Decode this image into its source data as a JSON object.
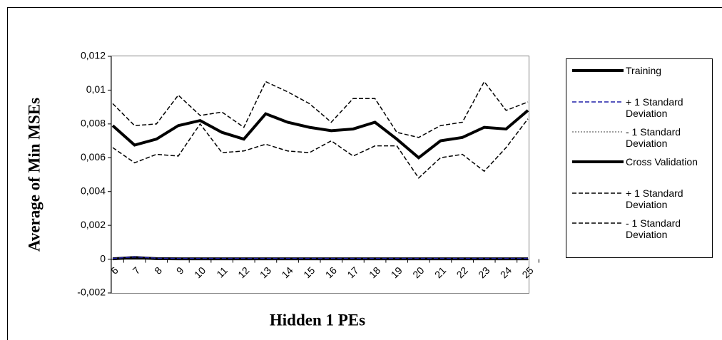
{
  "chart_data": {
    "type": "line",
    "xlabel": "Hidden 1 PEs",
    "ylabel": "Average of Min MSEs",
    "categories": [
      "6",
      "7",
      "8",
      "9",
      "10",
      "11",
      "12",
      "13",
      "14",
      "15",
      "16",
      "17",
      "18",
      "19",
      "20",
      "21",
      "22",
      "23",
      "24",
      "25"
    ],
    "ylim": [
      -0.002,
      0.012
    ],
    "yticks": [
      {
        "value": -0.002,
        "label": "-0,002"
      },
      0,
      {
        "value": 0.002,
        "label": "0,002"
      },
      {
        "value": 0.004,
        "label": "0,004"
      },
      {
        "value": 0.006,
        "label": "0,006"
      },
      {
        "value": 0.008,
        "label": "0,008"
      },
      {
        "value": 0.01,
        "label": "0,01"
      },
      {
        "value": 0.012,
        "label": "0,012"
      }
    ],
    "series": [
      {
        "name": "Training",
        "color": "#000000",
        "width": 4,
        "style": "solid",
        "values": [
          2e-05,
          0.0001,
          3e-05,
          2e-05,
          2e-05,
          2e-05,
          2e-05,
          2e-05,
          2e-05,
          2e-05,
          2e-05,
          2e-05,
          2e-05,
          2e-05,
          2e-05,
          2e-05,
          2e-05,
          2e-05,
          2e-05,
          2e-05
        ]
      },
      {
        "name": "+ 1 Standard Deviation",
        "color": "#1f1fa8",
        "width": 1.5,
        "style": "dashed",
        "values": [
          4e-05,
          0.00013,
          5e-05,
          4e-05,
          4e-05,
          4e-05,
          4e-05,
          4e-05,
          4e-05,
          4e-05,
          4e-05,
          4e-05,
          4e-05,
          4e-05,
          4e-05,
          4e-05,
          4e-05,
          4e-05,
          4e-05,
          4e-05
        ]
      },
      {
        "name": "- 1 Standard Deviation",
        "color": "#000000",
        "width": 0.8,
        "style": "dotted",
        "values": [
          0,
          7e-05,
          1e-05,
          0,
          0,
          0,
          0,
          0,
          0,
          0,
          0,
          0,
          0,
          0,
          0,
          0,
          0,
          0,
          0,
          0
        ]
      },
      {
        "name": "Cross Validation",
        "color": "#000000",
        "width": 4,
        "style": "solid",
        "values": [
          0.0079,
          0.00675,
          0.0071,
          0.0079,
          0.0082,
          0.0075,
          0.0071,
          0.0086,
          0.0081,
          0.0078,
          0.0076,
          0.0077,
          0.0081,
          0.0071,
          0.006,
          0.007,
          0.0072,
          0.0078,
          0.0077,
          0.0088
        ]
      },
      {
        "name": "+ 1 Standard Deviation",
        "color": "#000000",
        "width": 1.5,
        "style": "dashed",
        "values": [
          0.0092,
          0.0079,
          0.008,
          0.0097,
          0.0085,
          0.0087,
          0.0078,
          0.0105,
          0.0099,
          0.0092,
          0.0081,
          0.0095,
          0.0095,
          0.0075,
          0.0072,
          0.0079,
          0.0081,
          0.0105,
          0.0088,
          0.0093
        ]
      },
      {
        "name": "- 1 Standard Deviation",
        "color": "#000000",
        "width": 1.5,
        "style": "dashed",
        "values": [
          0.0066,
          0.0057,
          0.0062,
          0.0061,
          0.008,
          0.0063,
          0.0064,
          0.0068,
          0.0064,
          0.0063,
          0.007,
          0.0061,
          0.0067,
          0.0067,
          0.0048,
          0.006,
          0.0062,
          0.0052,
          0.0066,
          0.0083
        ]
      }
    ]
  }
}
